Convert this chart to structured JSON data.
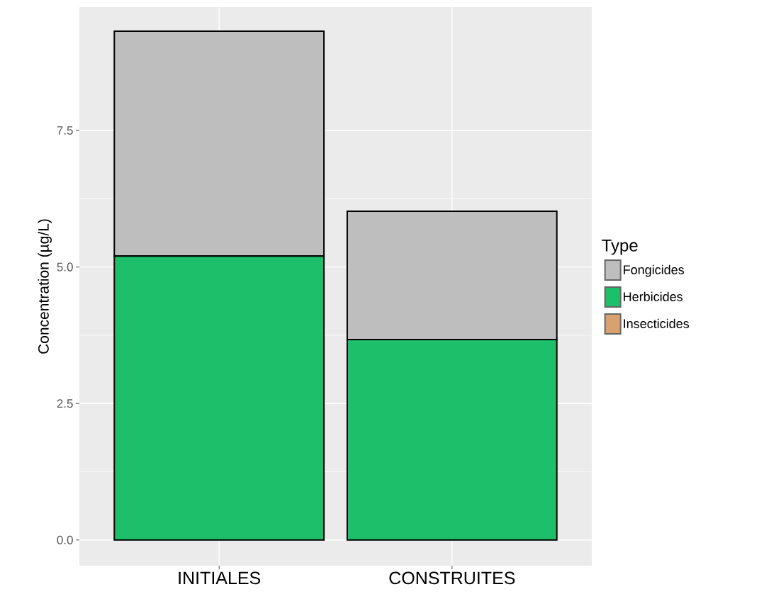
{
  "chart_data": {
    "type": "bar",
    "ylabel": "Concentration (µg/L)",
    "legend_title": "Type",
    "categories": [
      "INITIALES",
      "CONSTRUITES"
    ],
    "series": [
      {
        "name": "Insecticides",
        "color": "#d9a070",
        "values": [
          0,
          0
        ]
      },
      {
        "name": "Herbicides",
        "color": "#1dbf6a",
        "values": [
          5.2,
          3.67
        ]
      },
      {
        "name": "Fongicides",
        "color": "#bebebe",
        "values": [
          4.12,
          2.35
        ]
      }
    ],
    "stacked": true,
    "ylim": [
      -0.47,
      9.76
    ],
    "yticks": [
      {
        "value": 0,
        "label": "0.0"
      },
      {
        "value": 2.5,
        "label": "2.5"
      },
      {
        "value": 5,
        "label": "5.0"
      },
      {
        "value": 7.5,
        "label": "7.5"
      }
    ],
    "grid": true,
    "legend": "right"
  }
}
